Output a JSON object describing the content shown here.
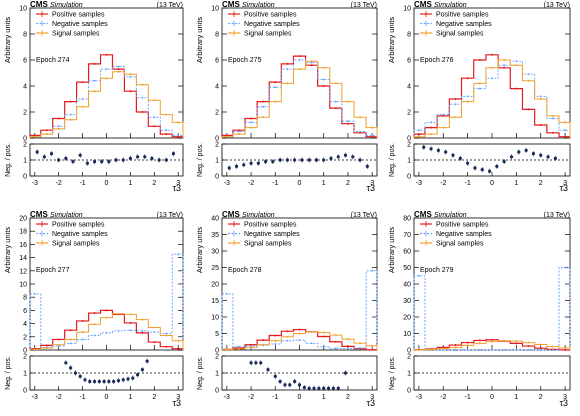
{
  "figure": {
    "experiment": "CMS",
    "simulation": "Simulation",
    "energy": "(13 TeV)",
    "legend": [
      "Positive samples",
      "Negative samples",
      "Signal samples"
    ],
    "ylabel_top": "Arbitrary units",
    "ylabel_ratio": "Neg. / pos.",
    "xlabel": "τ3",
    "colors": {
      "positive": "#e41a1c",
      "negative": "#6fa8ff",
      "signal": "#f0a030",
      "ratio": "#1a2a5a"
    }
  },
  "chart_data": [
    {
      "type": "line",
      "epoch": "Epoch 274",
      "xlim": [
        -3.2,
        3.2
      ],
      "ylim": [
        0,
        10
      ],
      "yticks": [
        0,
        2,
        4,
        6,
        8,
        10
      ],
      "xticks": [
        -3,
        -2,
        -1,
        0,
        1,
        2,
        3
      ],
      "ratio_ylim": [
        0,
        2
      ],
      "ratio_yticks": [
        0,
        1,
        2
      ],
      "x": [
        -3.0,
        -2.5,
        -2.0,
        -1.5,
        -1.0,
        -0.5,
        0.0,
        0.5,
        1.0,
        1.5,
        2.0,
        2.5,
        3.0
      ],
      "series": [
        {
          "name": "Positive samples",
          "values": [
            0.2,
            0.6,
            1.5,
            2.8,
            4.3,
            5.7,
            6.4,
            5.3,
            3.6,
            2.0,
            0.9,
            0.3,
            0.1
          ]
        },
        {
          "name": "Negative samples",
          "values": [
            0.1,
            0.3,
            0.9,
            1.8,
            3.0,
            4.4,
            5.3,
            5.5,
            4.7,
            3.1,
            1.6,
            0.6,
            0.2
          ]
        },
        {
          "name": "Signal samples",
          "values": [
            0.1,
            0.3,
            0.7,
            1.4,
            2.4,
            3.6,
            4.6,
            5.1,
            4.9,
            4.1,
            2.9,
            1.8,
            1.2
          ]
        }
      ],
      "ratio": {
        "x": [
          -2.9,
          -2.6,
          -2.3,
          -2.0,
          -1.7,
          -1.4,
          -1.1,
          -0.8,
          -0.5,
          -0.2,
          0.1,
          0.4,
          0.7,
          1.0,
          1.3,
          1.6,
          1.9,
          2.2,
          2.5,
          2.8
        ],
        "values": [
          1.5,
          1.2,
          1.4,
          1.0,
          1.1,
          0.9,
          1.3,
          0.8,
          0.9,
          0.9,
          0.9,
          1.0,
          1.0,
          1.1,
          1.2,
          1.2,
          1.1,
          1.0,
          1.0,
          1.4
        ]
      }
    },
    {
      "type": "line",
      "epoch": "Epoch 275",
      "xlim": [
        -3.2,
        3.2
      ],
      "ylim": [
        0,
        10
      ],
      "yticks": [
        0,
        2,
        4,
        6,
        8,
        10
      ],
      "xticks": [
        -3,
        -2,
        -1,
        0,
        1,
        2,
        3
      ],
      "ratio_ylim": [
        0,
        2
      ],
      "ratio_yticks": [
        0,
        1,
        2
      ],
      "x": [
        -3.0,
        -2.5,
        -2.0,
        -1.5,
        -1.0,
        -0.5,
        0.0,
        0.5,
        1.0,
        1.5,
        2.0,
        2.5,
        3.0
      ],
      "series": [
        {
          "name": "Positive samples",
          "values": [
            0.2,
            0.6,
            1.5,
            2.8,
            4.3,
            5.7,
            6.3,
            5.6,
            4.0,
            2.3,
            1.1,
            0.4,
            0.1
          ]
        },
        {
          "name": "Negative samples",
          "values": [
            0.1,
            0.5,
            1.2,
            2.4,
            3.9,
            5.3,
            6.0,
            5.8,
            4.5,
            2.8,
            1.3,
            0.5,
            0.2
          ]
        },
        {
          "name": "Signal samples",
          "values": [
            0.1,
            0.3,
            0.8,
            1.6,
            2.8,
            4.2,
            5.3,
            5.9,
            5.4,
            4.2,
            2.8,
            1.6,
            0.8
          ]
        }
      ],
      "ratio": {
        "x": [
          -2.9,
          -2.6,
          -2.3,
          -2.0,
          -1.7,
          -1.4,
          -1.1,
          -0.8,
          -0.5,
          -0.2,
          0.1,
          0.4,
          0.7,
          1.0,
          1.3,
          1.6,
          1.9,
          2.2,
          2.5,
          2.8
        ],
        "values": [
          0.5,
          0.6,
          0.7,
          0.8,
          0.8,
          0.9,
          0.9,
          1.0,
          1.0,
          1.0,
          1.0,
          1.0,
          1.0,
          1.0,
          1.1,
          1.2,
          1.3,
          1.2,
          1.0,
          0.6
        ]
      }
    },
    {
      "type": "line",
      "epoch": "Epoch 276",
      "xlim": [
        -3.2,
        3.2
      ],
      "ylim": [
        0,
        10
      ],
      "yticks": [
        0,
        2,
        4,
        6,
        8,
        10
      ],
      "xticks": [
        -3,
        -2,
        -1,
        0,
        1,
        2,
        3
      ],
      "ratio_ylim": [
        0,
        2
      ],
      "ratio_yticks": [
        0,
        1,
        2
      ],
      "x": [
        -3.0,
        -2.5,
        -2.0,
        -1.5,
        -1.0,
        -0.5,
        0.0,
        0.5,
        1.0,
        1.5,
        2.0,
        2.5,
        3.0
      ],
      "series": [
        {
          "name": "Positive samples",
          "values": [
            0.3,
            0.8,
            1.7,
            3.0,
            4.6,
            6.0,
            6.4,
            5.4,
            3.8,
            2.2,
            1.0,
            0.4,
            0.1
          ]
        },
        {
          "name": "Negative samples",
          "values": [
            0.6,
            1.2,
            1.8,
            2.6,
            3.2,
            3.8,
            4.6,
            5.6,
            5.9,
            4.9,
            3.2,
            1.5,
            0.6
          ]
        },
        {
          "name": "Signal samples",
          "values": [
            0.1,
            0.3,
            0.8,
            1.6,
            2.8,
            4.2,
            5.4,
            6.0,
            5.6,
            4.4,
            3.0,
            1.7,
            1.2
          ]
        }
      ],
      "ratio": {
        "x": [
          -2.8,
          -2.5,
          -2.2,
          -1.9,
          -1.6,
          -1.3,
          -1.0,
          -0.7,
          -0.4,
          -0.1,
          0.2,
          0.5,
          0.8,
          1.1,
          1.4,
          1.7,
          2.0,
          2.3,
          2.6
        ],
        "values": [
          1.8,
          1.7,
          1.6,
          1.5,
          1.3,
          1.1,
          0.8,
          0.5,
          0.4,
          0.3,
          0.6,
          0.9,
          1.2,
          1.5,
          1.6,
          1.4,
          1.3,
          1.2,
          1.1
        ]
      }
    },
    {
      "type": "line",
      "epoch": "Epoch 277",
      "xlim": [
        -3.2,
        3.2
      ],
      "ylim": [
        0,
        20
      ],
      "yticks": [
        0,
        2,
        4,
        6,
        8,
        10,
        12,
        14,
        16,
        18,
        20
      ],
      "xticks": [
        -3,
        -2,
        -1,
        0,
        1,
        2,
        3
      ],
      "ratio_ylim": [
        0,
        2
      ],
      "ratio_yticks": [
        0,
        1,
        2
      ],
      "x": [
        -3.0,
        -2.5,
        -2.0,
        -1.5,
        -1.0,
        -0.5,
        0.0,
        0.5,
        1.0,
        1.5,
        2.0,
        2.5,
        3.0
      ],
      "series": [
        {
          "name": "Positive samples",
          "values": [
            0.2,
            0.7,
            1.6,
            3.0,
            4.4,
            5.6,
            6.0,
            5.4,
            4.1,
            2.6,
            1.2,
            0.5,
            0.2
          ]
        },
        {
          "name": "Negative samples",
          "values": [
            8.5,
            0.4,
            0.6,
            1.0,
            1.6,
            2.2,
            2.6,
            2.9,
            3.0,
            2.9,
            2.7,
            2.5,
            14.5
          ]
        },
        {
          "name": "Signal samples",
          "values": [
            0.1,
            0.3,
            0.8,
            1.6,
            2.7,
            3.9,
            4.9,
            5.5,
            5.4,
            4.6,
            3.4,
            2.2,
            1.4
          ]
        }
      ],
      "ratio": {
        "x": [
          -1.7,
          -1.5,
          -1.3,
          -1.1,
          -0.9,
          -0.7,
          -0.5,
          -0.3,
          -0.1,
          0.1,
          0.3,
          0.5,
          0.7,
          0.9,
          1.1,
          1.3,
          1.5,
          1.7
        ],
        "values": [
          1.6,
          1.3,
          1.0,
          0.8,
          0.6,
          0.5,
          0.5,
          0.5,
          0.5,
          0.5,
          0.5,
          0.55,
          0.6,
          0.65,
          0.7,
          0.9,
          1.2,
          1.7
        ]
      }
    },
    {
      "type": "line",
      "epoch": "Epoch 278",
      "xlim": [
        -3.2,
        3.2
      ],
      "ylim": [
        0,
        40
      ],
      "yticks": [
        0,
        5,
        10,
        15,
        20,
        25,
        30,
        35,
        40
      ],
      "xticks": [
        -3,
        -2,
        -1,
        0,
        1,
        2,
        3
      ],
      "ratio_ylim": [
        0,
        2
      ],
      "ratio_yticks": [
        0,
        1,
        2
      ],
      "x": [
        -3.0,
        -2.5,
        -2.0,
        -1.5,
        -1.0,
        -0.5,
        0.0,
        0.5,
        1.0,
        1.5,
        2.0,
        2.5,
        3.0
      ],
      "series": [
        {
          "name": "Positive samples",
          "values": [
            0.2,
            0.6,
            1.6,
            3.0,
            4.4,
            5.7,
            6.2,
            5.5,
            4.1,
            2.5,
            1.1,
            0.4,
            0.1
          ]
        },
        {
          "name": "Negative samples",
          "values": [
            17.0,
            1.0,
            1.2,
            1.4,
            1.8,
            2.8,
            3.0,
            2.0,
            1.0,
            0.5,
            0.4,
            0.6,
            24.0
          ]
        },
        {
          "name": "Signal samples",
          "values": [
            0.1,
            0.3,
            0.8,
            1.6,
            2.8,
            4.0,
            5.0,
            5.5,
            5.3,
            4.5,
            3.3,
            2.1,
            1.3
          ]
        }
      ],
      "ratio": {
        "x": [
          -2.0,
          -1.8,
          -1.6,
          -1.3,
          -1.0,
          -0.8,
          -0.6,
          -0.4,
          -0.2,
          0.0,
          0.2,
          0.4,
          0.6,
          0.8,
          1.0,
          1.2,
          1.4,
          1.6,
          1.9
        ],
        "values": [
          1.6,
          1.6,
          1.6,
          1.2,
          0.8,
          0.5,
          0.3,
          0.3,
          0.5,
          0.3,
          0.15,
          0.1,
          0.1,
          0.1,
          0.1,
          0.1,
          0.1,
          0.1,
          1.0
        ]
      }
    },
    {
      "type": "line",
      "epoch": "Epoch 279",
      "xlim": [
        -3.2,
        3.2
      ],
      "ylim": [
        0,
        80
      ],
      "yticks": [
        0,
        10,
        20,
        30,
        40,
        50,
        60,
        70,
        80
      ],
      "xticks": [
        -3,
        -2,
        -1,
        0,
        1,
        2,
        3
      ],
      "ratio_ylim": [
        0,
        2
      ],
      "ratio_yticks": [
        0,
        1,
        2
      ],
      "x": [
        -3.0,
        -2.5,
        -2.0,
        -1.5,
        -1.0,
        -0.5,
        0.0,
        0.5,
        1.0,
        1.5,
        2.0,
        2.5,
        3.0
      ],
      "series": [
        {
          "name": "Positive samples",
          "values": [
            0.2,
            0.6,
            1.6,
            3.0,
            4.5,
            5.8,
            6.2,
            5.4,
            4.0,
            2.4,
            1.1,
            0.4,
            0.1
          ]
        },
        {
          "name": "Negative samples",
          "values": [
            45.0,
            0.0,
            0.0,
            0.0,
            0.0,
            0.0,
            0.0,
            0.0,
            0.0,
            0.0,
            0.0,
            0.0,
            50.0
          ]
        },
        {
          "name": "Signal samples",
          "values": [
            0.1,
            0.3,
            0.8,
            1.6,
            2.8,
            4.0,
            5.1,
            5.6,
            5.4,
            4.5,
            3.3,
            2.1,
            1.3
          ]
        }
      ],
      "ratio": {
        "x": [],
        "values": []
      }
    }
  ]
}
